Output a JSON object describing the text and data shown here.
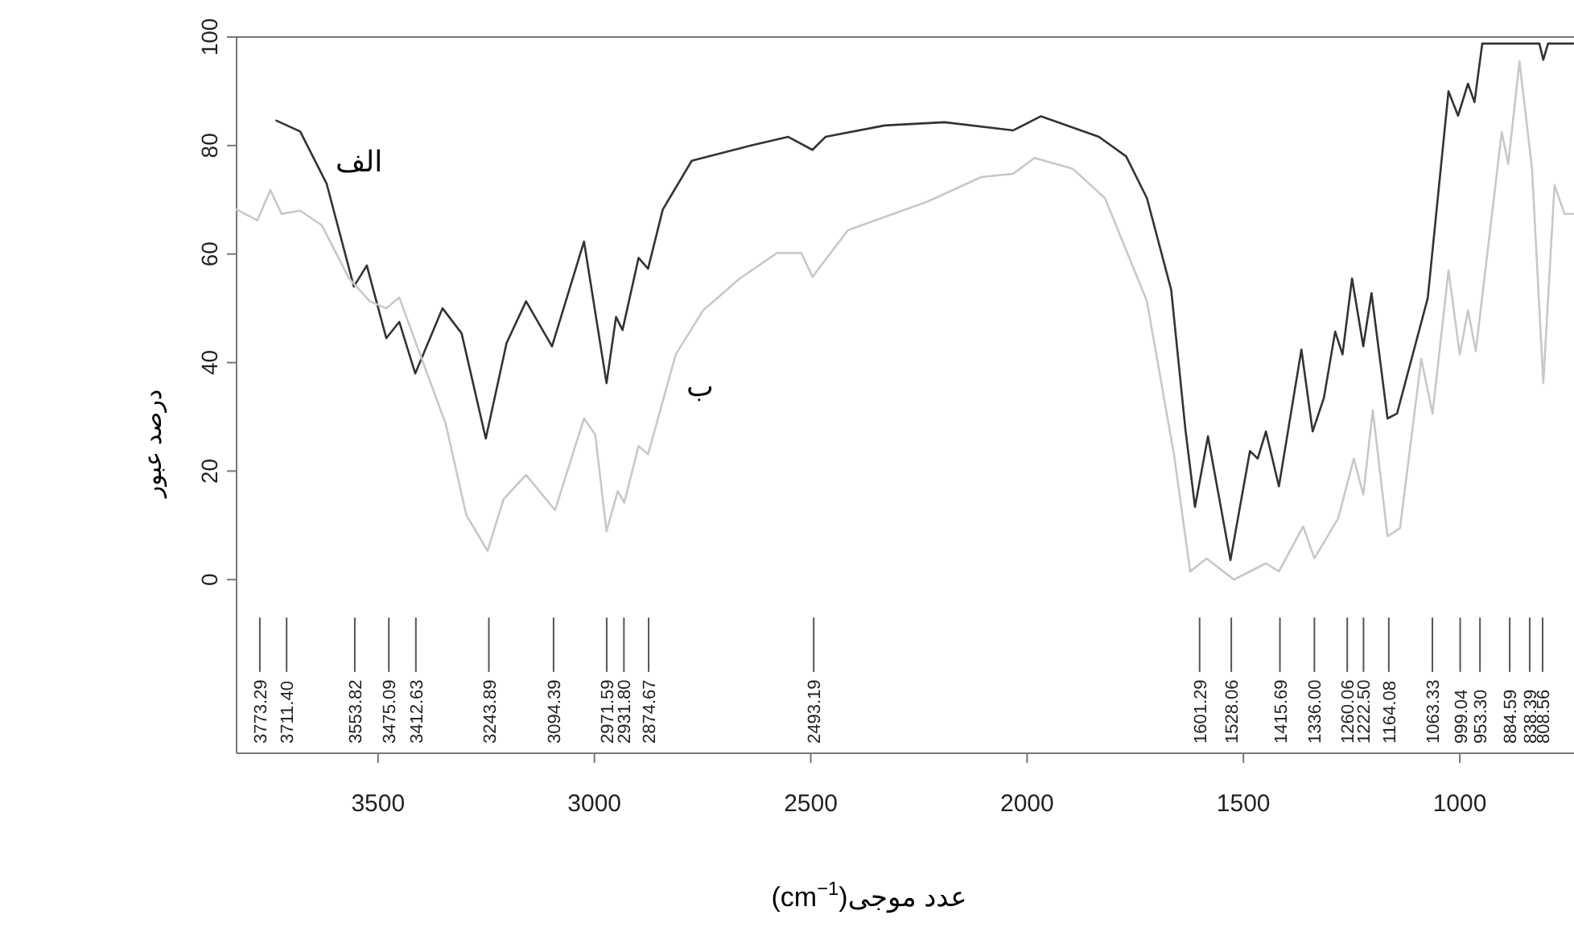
{
  "chart_data": {
    "type": "line",
    "xlabel": "(cm$^{−1}$)عدد موجی",
    "ylabel": "درصد عبور",
    "xlim": [
      3827,
      736
    ],
    "ylim": [
      -32,
      100
    ],
    "xticks": [
      3500,
      3000,
      2500,
      2000,
      1500,
      1000
    ],
    "yticks": [
      0,
      20,
      40,
      60,
      80,
      100
    ],
    "grid": false,
    "marker": "none",
    "line_style": "solid",
    "series": [
      {
        "color": "#333333",
        "x": [
          3735,
          3680,
          3619,
          3556,
          3526,
          3481,
          3451,
          3414,
          3351,
          3307,
          3251,
          3203,
          3158,
          3098,
          3024,
          2972,
          2950,
          2935,
          2898,
          2876,
          2842,
          2775,
          2638,
          2552,
          2496,
          2466,
          2329,
          2191,
          2032,
          1968,
          1834,
          1771,
          1723,
          1667,
          1634,
          1612,
          1582,
          1530,
          1485,
          1467,
          1448,
          1418,
          1366,
          1340,
          1314,
          1288,
          1271,
          1249,
          1223,
          1204,
          1167,
          1145,
          1074,
          1026,
          1004,
          981,
          966,
          948,
          816,
          807,
          796,
          738
        ],
        "values": [
          84.6,
          82.6,
          73,
          54,
          57.9,
          44.5,
          47.5,
          38,
          50,
          45.4,
          26,
          43.6,
          51.3,
          43,
          62.3,
          36.2,
          48.4,
          46,
          59.3,
          57.3,
          68.2,
          77.2,
          80,
          81.6,
          79.2,
          81.6,
          83.7,
          84.3,
          82.8,
          85.4,
          81.6,
          78,
          70.3,
          53.4,
          27.6,
          13.4,
          26.4,
          3.6,
          23.7,
          22.3,
          27.3,
          17.2,
          42.4,
          27.3,
          33.5,
          45.7,
          41.5,
          55.5,
          43,
          52.8,
          29.7,
          30.6,
          51.9,
          90,
          85.5,
          91.4,
          88,
          98.8,
          98.8,
          95.8,
          98.8,
          98.8
        ]
      },
      {
        "color": "#c8c8c8",
        "x": [
          3827,
          3779,
          3749,
          3723,
          3680,
          3630,
          3567,
          3519,
          3481,
          3451,
          3407,
          3344,
          3296,
          3247,
          3210,
          3158,
          3091,
          3024,
          2998,
          2972,
          2946,
          2931,
          2898,
          2876,
          2812,
          2749,
          2664,
          2578,
          2522,
          2496,
          2414,
          2229,
          2106,
          2032,
          1983,
          1894,
          1820,
          1723,
          1660,
          1623,
          1585,
          1522,
          1448,
          1418,
          1362,
          1336,
          1281,
          1245,
          1223,
          1201,
          1167,
          1138,
          1089,
          1063,
          1026,
          1000,
          981,
          963,
          903,
          888,
          862,
          833,
          807,
          781,
          758,
          738
        ],
        "values": [
          68.2,
          66.2,
          71.8,
          67.4,
          68,
          65.3,
          55.5,
          51.3,
          50,
          52,
          42.4,
          28.8,
          11.9,
          5.3,
          14.8,
          19.3,
          12.8,
          29.7,
          26.7,
          8.9,
          16.3,
          14.2,
          24.6,
          23.1,
          41.5,
          49.6,
          55.5,
          60.2,
          60.2,
          55.8,
          64.4,
          69.7,
          74.2,
          74.8,
          77.7,
          75.7,
          70.3,
          51.3,
          22.8,
          1.5,
          3.9,
          0,
          3,
          1.5,
          9.8,
          3.9,
          11.3,
          22.3,
          15.7,
          31.2,
          8,
          9.5,
          40.7,
          30.6,
          57,
          41.5,
          49.6,
          42.1,
          82.5,
          76.6,
          95.5,
          75.7,
          36.2,
          72.7,
          67.4,
          67.4
        ]
      }
    ],
    "annotations": [
      {
        "text": "الف",
        "x": 3643,
        "y": 77
      },
      {
        "text": "ب",
        "x": 2832,
        "y": 35.6
      }
    ],
    "ref_lines": [
      {
        "axis": "x",
        "value": 3773.29,
        "label": "3773.29"
      },
      {
        "axis": "x",
        "value": 3711.4,
        "label": "3711.40"
      },
      {
        "axis": "x",
        "value": 3553.82,
        "label": "3553.82"
      },
      {
        "axis": "x",
        "value": 3475.09,
        "label": "3475.09"
      },
      {
        "axis": "x",
        "value": 3412.63,
        "label": "3412.63"
      },
      {
        "axis": "x",
        "value": 3243.89,
        "label": "3243.89"
      },
      {
        "axis": "x",
        "value": 3094.39,
        "label": "3094.39"
      },
      {
        "axis": "x",
        "value": 2971.59,
        "label": "2971.59"
      },
      {
        "axis": "x",
        "value": 2931.8,
        "label": "2931.80"
      },
      {
        "axis": "x",
        "value": 2874.67,
        "label": "2874.67"
      },
      {
        "axis": "x",
        "value": 2493.19,
        "label": "2493.19"
      },
      {
        "axis": "x",
        "value": 1601.29,
        "label": "1601.29"
      },
      {
        "axis": "x",
        "value": 1528.06,
        "label": "1528.06"
      },
      {
        "axis": "x",
        "value": 1415.69,
        "label": "1415.69"
      },
      {
        "axis": "x",
        "value": 1336.0,
        "label": "1336.00"
      },
      {
        "axis": "x",
        "value": 1260.06,
        "label": "1260.06"
      },
      {
        "axis": "x",
        "value": 1222.5,
        "label": "1222.50"
      },
      {
        "axis": "x",
        "value": 1164.08,
        "label": "1164.08"
      },
      {
        "axis": "x",
        "value": 1063.33,
        "label": "1063.33"
      },
      {
        "axis": "x",
        "value": 999.04,
        "label": "999.04"
      },
      {
        "axis": "x",
        "value": 953.3,
        "label": "953.30"
      },
      {
        "axis": "x",
        "value": 884.59,
        "label": "884.59"
      },
      {
        "axis": "x",
        "value": 838.39,
        "label": "838.39"
      },
      {
        "axis": "x",
        "value": 808.56,
        "label": "808.56"
      }
    ]
  }
}
